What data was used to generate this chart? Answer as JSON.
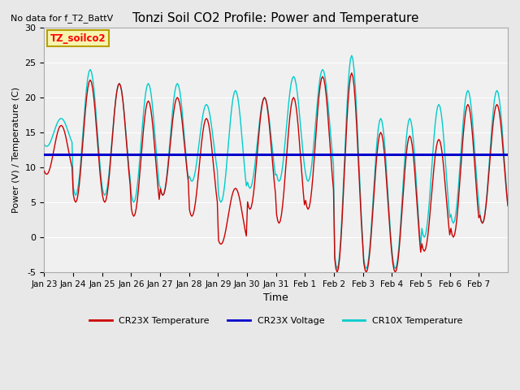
{
  "title": "Tonzi Soil CO2 Profile: Power and Temperature",
  "subtitle": "No data for f_T2_BattV",
  "ylabel": "Power (V) / Temperature (C)",
  "xlabel": "Time",
  "ylim": [
    -5,
    30
  ],
  "yticks": [
    -5,
    0,
    5,
    10,
    15,
    20,
    25,
    30
  ],
  "xtick_positions": [
    0,
    1,
    2,
    3,
    4,
    5,
    6,
    7,
    8,
    9,
    10,
    11,
    12,
    13,
    14,
    15
  ],
  "xtick_labels": [
    "Jan 23",
    "Jan 24",
    "Jan 25",
    "Jan 26",
    "Jan 27",
    "Jan 28",
    "Jan 29",
    "Jan 30",
    "Jan 31",
    "Feb 1",
    "Feb 2",
    "Feb 3",
    "Feb 4",
    "Feb 5",
    "Feb 6",
    "Feb 7"
  ],
  "n_days": 15,
  "legend_box_label": "TZ_soilco2",
  "legend_box_color": "#f5f5b0",
  "legend_box_border": "#b8a000",
  "background_color": "#e8e8e8",
  "plot_bg_color": "#f0f0f0",
  "voltage_value": 11.9,
  "cr23x_color": "#cc0000",
  "cr10x_color": "#00cccc",
  "voltage_color": "#0000cc",
  "cr23x_peaks": [
    16,
    22.5,
    22,
    19.5,
    20,
    17,
    7,
    20,
    20,
    23,
    23.5,
    15,
    14.5,
    14,
    19,
    19
  ],
  "cr23x_troughs": [
    9,
    5,
    5,
    3,
    6,
    3,
    -1,
    4,
    2,
    4,
    -5,
    -5,
    -5,
    -2,
    0,
    2
  ],
  "cr10x_peaks": [
    17,
    24,
    22,
    22,
    22,
    19,
    21,
    20,
    23,
    24,
    26,
    17,
    17,
    19,
    21,
    21
  ],
  "cr10x_troughs": [
    13,
    6,
    6,
    5,
    6,
    8,
    5,
    7,
    8,
    8,
    -4.5,
    -4.5,
    -4.5,
    0,
    2,
    2
  ],
  "phase_peak_hour": 14
}
